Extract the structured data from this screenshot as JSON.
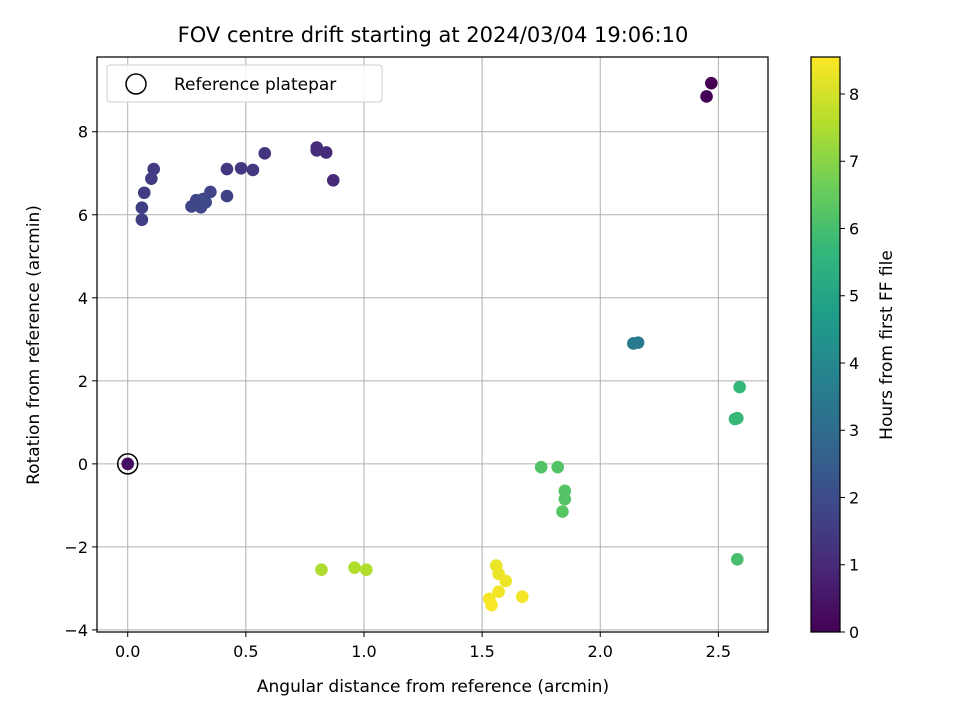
{
  "chart_data": {
    "type": "scatter",
    "title": "FOV centre drift starting at 2024/03/04 19:06:10",
    "xlabel": "Angular distance from reference (arcmin)",
    "ylabel": "Rotation from reference (arcmin)",
    "xlim": [
      -0.13,
      2.71
    ],
    "ylim": [
      -4.05,
      9.8
    ],
    "xticks": [
      0.0,
      0.5,
      1.0,
      1.5,
      2.0,
      2.5
    ],
    "xtick_labels": [
      "0.0",
      "0.5",
      "1.0",
      "1.5",
      "2.0",
      "2.5"
    ],
    "yticks": [
      -4,
      -2,
      0,
      2,
      4,
      6,
      8
    ],
    "ytick_labels": [
      "−4",
      "−2",
      "0",
      "2",
      "4",
      "6",
      "8"
    ],
    "grid": true,
    "legend": {
      "placement": "top-left",
      "label": "Reference platepar",
      "marker": "hollow-circle"
    },
    "reference_point": {
      "x": 0.0,
      "y": 0.0
    },
    "colorbar": {
      "label": "Hours from first FF file",
      "min": 0,
      "max": 8.55,
      "ticks": [
        0,
        1,
        2,
        3,
        4,
        5,
        6,
        7,
        8
      ],
      "tick_labels": [
        "0",
        "1",
        "2",
        "3",
        "4",
        "5",
        "6",
        "7",
        "8"
      ],
      "colormap": "viridis"
    },
    "colormap_stops": [
      "#440154",
      "#482878",
      "#3e4989",
      "#31688e",
      "#26828e",
      "#1f9e89",
      "#35b779",
      "#6ece58",
      "#b5de2b",
      "#fde725"
    ],
    "points": [
      {
        "x": 0.0,
        "y": 0.0,
        "hours": 0.3
      },
      {
        "x": 2.45,
        "y": 8.85,
        "hours": 0.05
      },
      {
        "x": 2.47,
        "y": 9.17,
        "hours": 0.0
      },
      {
        "x": 0.8,
        "y": 7.62,
        "hours": 1.1
      },
      {
        "x": 0.8,
        "y": 7.55,
        "hours": 1.1
      },
      {
        "x": 0.84,
        "y": 7.5,
        "hours": 1.1
      },
      {
        "x": 0.87,
        "y": 6.83,
        "hours": 1.0
      },
      {
        "x": 0.58,
        "y": 7.48,
        "hours": 1.3
      },
      {
        "x": 0.42,
        "y": 7.1,
        "hours": 1.4
      },
      {
        "x": 0.48,
        "y": 7.12,
        "hours": 1.35
      },
      {
        "x": 0.53,
        "y": 7.08,
        "hours": 1.35
      },
      {
        "x": 0.42,
        "y": 6.45,
        "hours": 1.7
      },
      {
        "x": 0.35,
        "y": 6.55,
        "hours": 1.75
      },
      {
        "x": 0.11,
        "y": 7.1,
        "hours": 1.5
      },
      {
        "x": 0.1,
        "y": 6.87,
        "hours": 1.5
      },
      {
        "x": 0.07,
        "y": 6.53,
        "hours": 1.55
      },
      {
        "x": 0.06,
        "y": 6.17,
        "hours": 1.6
      },
      {
        "x": 0.06,
        "y": 5.88,
        "hours": 1.6
      },
      {
        "x": 0.27,
        "y": 6.2,
        "hours": 1.8
      },
      {
        "x": 0.29,
        "y": 6.35,
        "hours": 1.8
      },
      {
        "x": 0.3,
        "y": 6.22,
        "hours": 1.85
      },
      {
        "x": 0.31,
        "y": 6.18,
        "hours": 1.85
      },
      {
        "x": 0.33,
        "y": 6.3,
        "hours": 1.9
      },
      {
        "x": 0.32,
        "y": 6.38,
        "hours": 1.9
      },
      {
        "x": 2.14,
        "y": 2.9,
        "hours": 3.5
      },
      {
        "x": 2.16,
        "y": 2.92,
        "hours": 3.5
      },
      {
        "x": 2.59,
        "y": 1.85,
        "hours": 5.7
      },
      {
        "x": 2.58,
        "y": 1.1,
        "hours": 5.75
      },
      {
        "x": 2.57,
        "y": 1.08,
        "hours": 5.75
      },
      {
        "x": 2.58,
        "y": -2.3,
        "hours": 6.0
      },
      {
        "x": 1.75,
        "y": -0.08,
        "hours": 6.2
      },
      {
        "x": 1.82,
        "y": -0.08,
        "hours": 6.2
      },
      {
        "x": 1.85,
        "y": -0.65,
        "hours": 6.25
      },
      {
        "x": 1.85,
        "y": -0.85,
        "hours": 6.25
      },
      {
        "x": 1.84,
        "y": -1.15,
        "hours": 6.3
      },
      {
        "x": 0.82,
        "y": -2.55,
        "hours": 7.5
      },
      {
        "x": 0.96,
        "y": -2.5,
        "hours": 7.55
      },
      {
        "x": 1.01,
        "y": -2.55,
        "hours": 7.55
      },
      {
        "x": 1.56,
        "y": -2.45,
        "hours": 8.3
      },
      {
        "x": 1.57,
        "y": -2.65,
        "hours": 8.3
      },
      {
        "x": 1.6,
        "y": -2.82,
        "hours": 8.35
      },
      {
        "x": 1.57,
        "y": -3.08,
        "hours": 8.4
      },
      {
        "x": 1.67,
        "y": -3.2,
        "hours": 8.4
      },
      {
        "x": 1.53,
        "y": -3.25,
        "hours": 8.45
      },
      {
        "x": 1.54,
        "y": -3.4,
        "hours": 8.5
      }
    ]
  }
}
